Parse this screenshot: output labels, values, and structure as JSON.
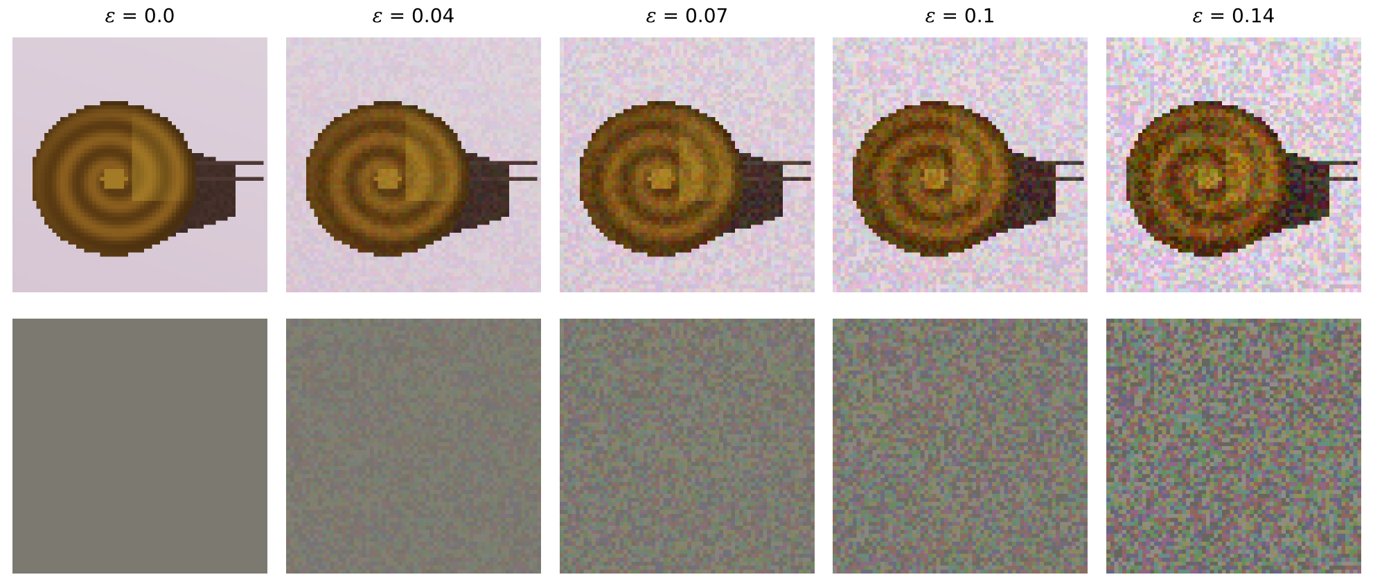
{
  "figure": {
    "columns": [
      {
        "eps_symbol": "ε",
        "equals": "=",
        "value": "0.0",
        "strength": 0.0
      },
      {
        "eps_symbol": "ε",
        "equals": "=",
        "value": "0.04",
        "strength": 0.04
      },
      {
        "eps_symbol": "ε",
        "equals": "=",
        "value": "0.07",
        "strength": 0.07
      },
      {
        "eps_symbol": "ε",
        "equals": "=",
        "value": "0.1",
        "strength": 0.1
      },
      {
        "eps_symbol": "ε",
        "equals": "=",
        "value": "0.14",
        "strength": 0.14
      }
    ],
    "rows": [
      "perturbed-image",
      "perturbation"
    ],
    "colors": {
      "background": "#dcd0db",
      "perturbation_gray": "#7c7a70",
      "shell_dark": "#5a3a12",
      "shell_mid": "#8a5e1e",
      "shell_light": "#c9a532",
      "body_dark": "#3b2a22"
    }
  }
}
